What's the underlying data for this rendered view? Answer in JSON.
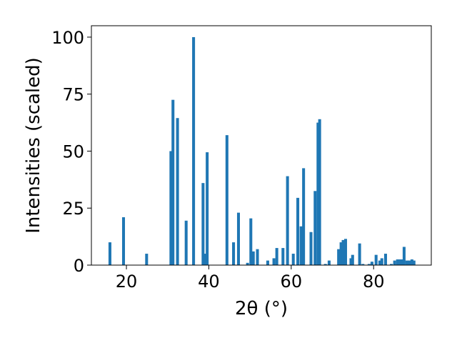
{
  "chart_data": {
    "type": "bar",
    "title": "",
    "xlabel": "2θ (°)",
    "ylabel": "Intensities (scaled)",
    "xlim": [
      11.5,
      94.0
    ],
    "ylim": [
      0,
      105
    ],
    "xticks": [
      20,
      40,
      60,
      80
    ],
    "yticks": [
      0,
      25,
      50,
      75,
      100
    ],
    "grid": false,
    "bar_color": "#1f77b4",
    "bar_width": 0.7,
    "x": [
      16.0,
      19.3,
      24.9,
      30.8,
      31.3,
      32.4,
      34.5,
      36.3,
      38.6,
      39.1,
      39.6,
      44.4,
      46.0,
      47.2,
      49.4,
      50.2,
      50.8,
      51.8,
      54.3,
      55.8,
      56.5,
      58.0,
      59.1,
      60.5,
      61.6,
      62.4,
      63.0,
      64.8,
      65.8,
      66.5,
      66.9,
      68.3,
      69.2,
      71.5,
      72.1,
      72.6,
      73.2,
      74.5,
      74.9,
      76.6,
      77.4,
      78.9,
      79.6,
      80.6,
      81.5,
      82.0,
      82.9,
      84.3,
      85.1,
      85.8,
      86.4,
      86.9,
      87.4,
      88.1,
      88.7,
      89.3,
      89.8
    ],
    "values": [
      10,
      21,
      5,
      50,
      72.5,
      64.5,
      19.5,
      100,
      36,
      5,
      49.5,
      57,
      10,
      23,
      1,
      20.5,
      6,
      7,
      2,
      3,
      7.5,
      7.5,
      39,
      5,
      29.5,
      17,
      42.5,
      14.5,
      32.5,
      62.5,
      64,
      0.5,
      2,
      7,
      10,
      11,
      11.5,
      3,
      4.5,
      9.5,
      0.5,
      0.5,
      1.5,
      4.5,
      2,
      3,
      5,
      0.5,
      2,
      2.5,
      2.5,
      2.5,
      8,
      2,
      2,
      2.5,
      2
    ]
  }
}
